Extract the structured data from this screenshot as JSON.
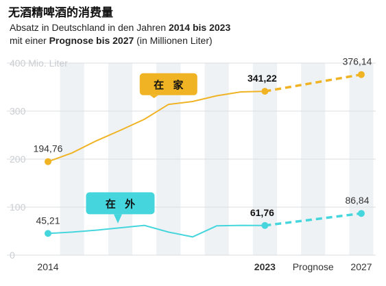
{
  "title": "无酒精啤酒的消费量",
  "subtitle": {
    "line1_prefix": "Absatz in Deutschland in den Jahren ",
    "line1_bold": "2014 bis 2023",
    "line2_prefix": "mit einer ",
    "line2_bold": "Prognose bis 2027",
    "line2_suffix": " (in Millionen Liter)"
  },
  "chart_data": {
    "type": "line",
    "ylim": [
      0,
      400
    ],
    "ytick_labels": [
      "0",
      "100",
      "200",
      "300",
      "400 Mio. Liter"
    ],
    "yticks": [
      0,
      100,
      200,
      300,
      400
    ],
    "xlim": [
      2014,
      2027
    ],
    "xtick_labels": [
      {
        "x": 2014,
        "label": "2014",
        "bold": false
      },
      {
        "x": 2023,
        "label": "2023",
        "bold": true
      },
      {
        "x": 2025,
        "label": "Prognose",
        "bold": false
      },
      {
        "x": 2027,
        "label": "2027",
        "bold": false
      }
    ],
    "grid": true,
    "colors": {
      "home": "#f0b323",
      "outside": "#45d6dd",
      "grid": "#d9dde1",
      "stripe": "#eef2f5"
    },
    "series": [
      {
        "name": "在 家",
        "color": "#f0b323",
        "actual": [
          [
            2014,
            194.76
          ],
          [
            2015,
            213
          ],
          [
            2016,
            238
          ],
          [
            2017,
            260
          ],
          [
            2018,
            283
          ],
          [
            2019,
            314
          ],
          [
            2020,
            320
          ],
          [
            2021,
            332
          ],
          [
            2022,
            340
          ],
          [
            2023,
            341.22
          ]
        ],
        "forecast": [
          [
            2023,
            341.22
          ],
          [
            2027,
            376.14
          ]
        ],
        "labels": [
          {
            "x": 2014,
            "y": 194.76,
            "text": "194,76",
            "bold": false
          },
          {
            "x": 2023,
            "y": 341.22,
            "text": "341,22",
            "bold": true
          },
          {
            "x": 2027,
            "y": 376.14,
            "text": "376,14",
            "bold": false
          }
        ]
      },
      {
        "name": "在 外",
        "color": "#45d6dd",
        "actual": [
          [
            2014,
            45.21
          ],
          [
            2015,
            48
          ],
          [
            2016,
            52
          ],
          [
            2017,
            57
          ],
          [
            2018,
            62
          ],
          [
            2019,
            48
          ],
          [
            2020,
            38
          ],
          [
            2021,
            61
          ],
          [
            2022,
            62
          ],
          [
            2023,
            61.76
          ]
        ],
        "forecast": [
          [
            2023,
            61.76
          ],
          [
            2027,
            86.84
          ]
        ],
        "labels": [
          {
            "x": 2014,
            "y": 45.21,
            "text": "45,21",
            "bold": false
          },
          {
            "x": 2023,
            "y": 61.76,
            "text": "61,76",
            "bold": true
          },
          {
            "x": 2027,
            "y": 86.84,
            "text": "86,84",
            "bold": false
          }
        ]
      }
    ]
  }
}
